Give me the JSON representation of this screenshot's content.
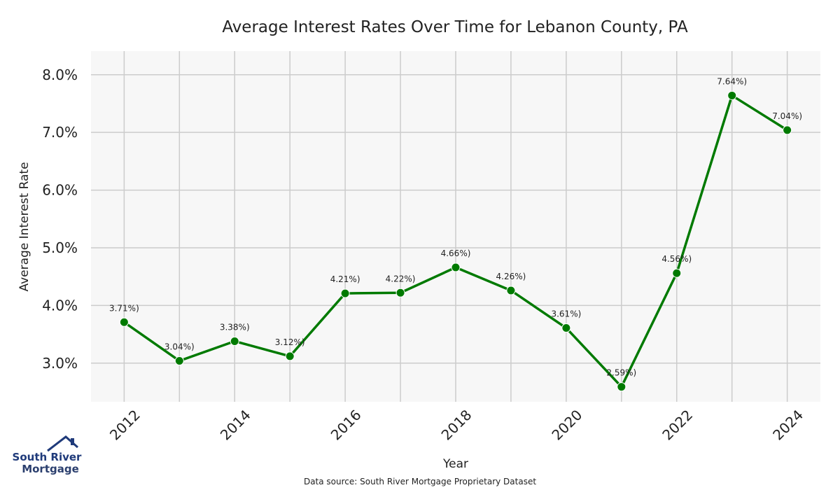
{
  "chart_data": {
    "type": "line",
    "title": "Average Interest Rates Over Time for Lebanon County, PA",
    "xlabel": "Year",
    "ylabel": "Average Interest Rate",
    "x": [
      2012,
      2013,
      2014,
      2015,
      2016,
      2017,
      2018,
      2019,
      2020,
      2021,
      2022,
      2023,
      2024
    ],
    "series": [
      {
        "values": [
          3.71,
          3.04,
          3.38,
          3.12,
          4.21,
          4.22,
          4.66,
          4.26,
          3.61,
          2.59,
          4.56,
          7.64,
          7.04
        ],
        "point_labels": [
          "3.71%)",
          "3.04%)",
          "3.38%)",
          "3.12%)",
          "4.21%)",
          "4.22%)",
          "4.66%)",
          "4.26%)",
          "3.61%)",
          "2.59%)",
          "4.56%)",
          "7.64%)",
          "7.04%)"
        ],
        "color": "#007a00"
      }
    ],
    "x_ticks": [
      "2012",
      "2014",
      "2016",
      "2018",
      "2020",
      "2022",
      "2024"
    ],
    "y_ticks": [
      "3.0%",
      "4.0%",
      "5.0%",
      "6.0%",
      "7.0%",
      "8.0%"
    ],
    "y_tick_values": [
      3,
      4,
      5,
      6,
      7,
      8
    ],
    "xlim": [
      2011.4,
      2024.6
    ],
    "ylim": [
      2.33,
      8.41
    ],
    "grid": true,
    "background": "#f7f7f7",
    "grid_color": "#cccccc"
  },
  "logo": {
    "line1": "South River",
    "line2": "Mortgage",
    "color_primary": "#1f3a7a",
    "color_secondary": "#2b3f6e"
  },
  "footer": {
    "source": "Data source: South River Mortgage Proprietary Dataset"
  }
}
